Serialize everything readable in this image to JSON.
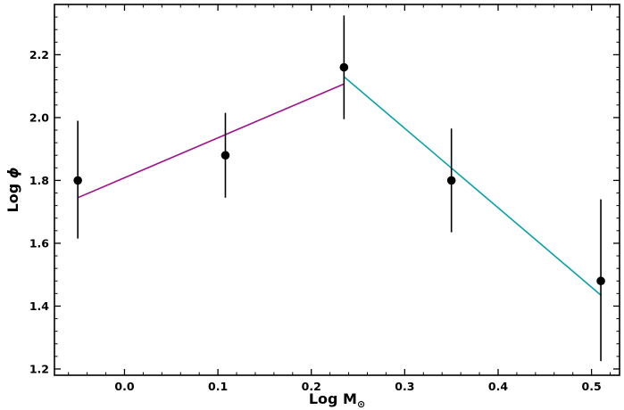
{
  "chart_data": {
    "type": "scatter",
    "xlabel": "Log M",
    "xlabel_subscript": "⊙",
    "ylabel": "Log ",
    "ylabel_symbol": "ϕ",
    "xlim": [
      -0.075,
      0.53
    ],
    "ylim": [
      1.18,
      2.36
    ],
    "xticks": [
      0.0,
      0.1,
      0.2,
      0.3,
      0.4,
      0.5
    ],
    "xtick_labels": [
      "0.0",
      "0.1",
      "0.2",
      "0.3",
      "0.4",
      "0.5"
    ],
    "yticks": [
      1.2,
      1.4,
      1.6,
      1.8,
      2.0,
      2.2
    ],
    "ytick_labels": [
      "1.2",
      "1.4",
      "1.6",
      "1.8",
      "2.0",
      "2.2"
    ],
    "grid": false,
    "points": [
      {
        "x": -0.05,
        "y": 1.8,
        "y_low": 1.615,
        "y_high": 1.99
      },
      {
        "x": 0.108,
        "y": 1.88,
        "y_low": 1.745,
        "y_high": 2.015
      },
      {
        "x": 0.235,
        "y": 2.16,
        "y_low": 1.995,
        "y_high": 2.325
      },
      {
        "x": 0.35,
        "y": 1.8,
        "y_low": 1.635,
        "y_high": 1.965
      },
      {
        "x": 0.51,
        "y": 1.48,
        "y_low": 1.225,
        "y_high": 1.74
      }
    ],
    "fit_lines": [
      {
        "x": [
          -0.05,
          0.235
        ],
        "y": [
          1.745,
          2.107
        ],
        "color": "#a0108a"
      },
      {
        "x": [
          0.235,
          0.51
        ],
        "y": [
          2.13,
          1.435
        ],
        "color": "#0aa0a8"
      }
    ],
    "colors": {
      "points": "#000000",
      "axes": "#000000"
    }
  }
}
